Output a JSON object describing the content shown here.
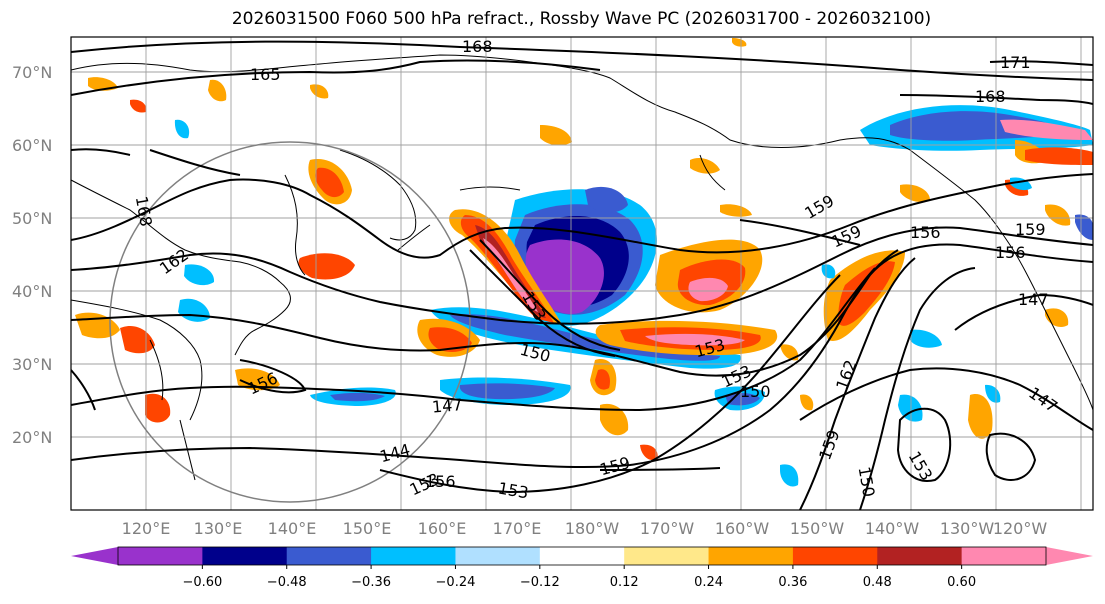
{
  "title": "2026031500 F060 500 hPa refract., Rossby Wave PC (2026031700 - 2026032100)",
  "lat_labels": [
    "70°N",
    "60°N",
    "50°N",
    "40°N",
    "30°N",
    "20°N"
  ],
  "lon_labels": [
    "120°E",
    "130°E",
    "140°E",
    "150°E",
    "160°E",
    "170°E",
    "180°W",
    "170°W",
    "160°W",
    "150°W",
    "140°W",
    "130°W",
    "120°W"
  ],
  "colorbar": {
    "colors": [
      "#9932cc",
      "#00008b",
      "#3a5bd0",
      "#00bfff",
      "#b0e0ff",
      "#ffffff",
      "#ffe88a",
      "#ffa500",
      "#ff4500",
      "#b22222",
      "#ff88b0"
    ],
    "tick_labels": [
      "−0.60",
      "−0.48",
      "−0.36",
      "−0.24",
      "−0.12",
      "0.12",
      "0.24",
      "0.36",
      "0.48",
      "0.60"
    ]
  },
  "contour_labels": [
    "168",
    "165",
    "171",
    "168",
    "168",
    "162",
    "159",
    "159",
    "156",
    "159",
    "156",
    "147",
    "153",
    "150",
    "153",
    "153",
    "150",
    "147",
    "144",
    "153",
    "156",
    "153",
    "159",
    "159",
    "162",
    "150",
    "153",
    "147",
    "156"
  ]
}
